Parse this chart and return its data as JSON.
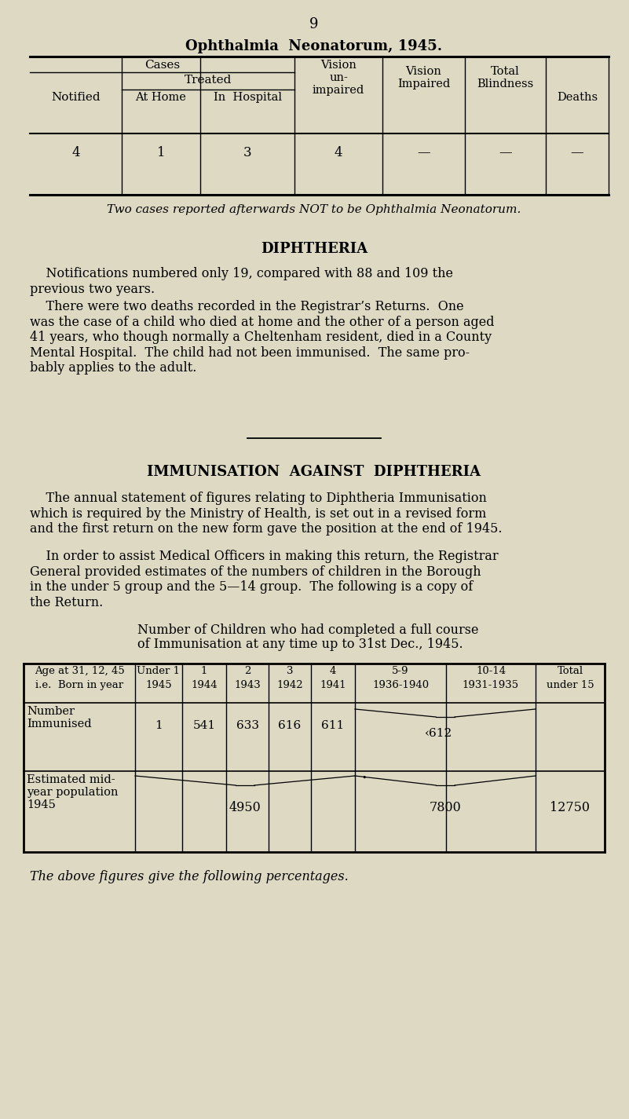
{
  "bg_color": "#ddd9c3",
  "page_number": "9",
  "table1_title": "Ophthalmia  Neonatorum, 1945.",
  "table1_data": [
    "4",
    "1",
    "3",
    "4",
    "—",
    "—",
    "—"
  ],
  "table1_note": "Two cases reported afterwards NOT to be Ophthalmia Neonatorum.",
  "diphtheria_title": "DIPHTHERIA",
  "diphtheria_para1": "    Notifications numbered only 19, compared with 88 and 109 the\nprevious two years.",
  "diphtheria_para2": "    There were two deaths recorded in the Registrar’s Returns.  One\nwas the case of a child who died at home and the other of a person aged\n41 years, who though normally a Cheltenham resident, died in a County\nMental Hospital.  The child had not been immunised.  The same pro-\nbably applies to the adult.",
  "immunisation_title": "IMMUNISATION  AGAINST  DIPHTHERIA",
  "immunisation_para1": "    The annual statement of figures relating to Diphtheria Immunisation\nwhich is required by the Ministry of Health, is set out in a revised form\nand the first return on the new form gave the position at the end of 1945.",
  "immunisation_para2": "    In order to assist Medical Officers in making this return, the Registrar\nGeneral provided estimates of the numbers of children in the Borough\nin the under 5 group and the 5—14 group.  The following is a copy of\nthe Return.",
  "immunisation_subtitle_l1": "Number of Children who had completed a full course",
  "immunisation_subtitle_l2": "of Immunisation at any time up to 31st Dec., 1945.",
  "final_line": "The above figures give the following percentages."
}
